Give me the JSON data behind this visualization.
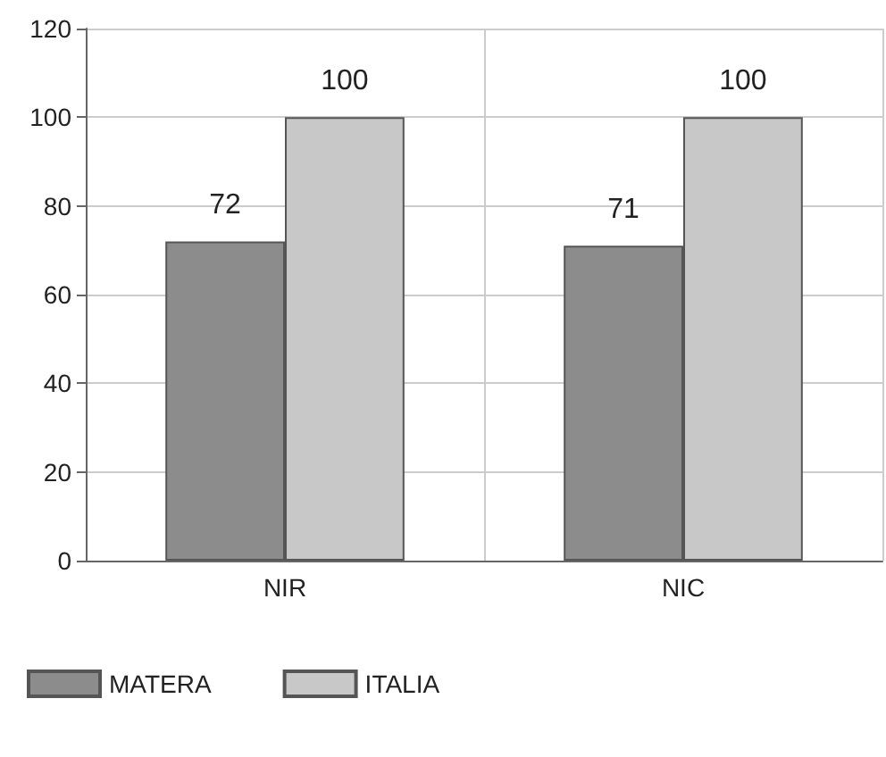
{
  "chart_data": {
    "type": "bar",
    "categories": [
      "NIR",
      "NIC"
    ],
    "series": [
      {
        "name": "MATERA",
        "color": "#8c8c8c",
        "values": [
          72,
          71
        ]
      },
      {
        "name": "ITALIA",
        "color": "#c8c8c8",
        "values": [
          100,
          100
        ]
      }
    ],
    "ylim": [
      0,
      120
    ],
    "yticks": [
      0,
      20,
      40,
      60,
      80,
      100,
      120
    ],
    "grid": true,
    "legend": "bottom left",
    "data_labels": true
  }
}
